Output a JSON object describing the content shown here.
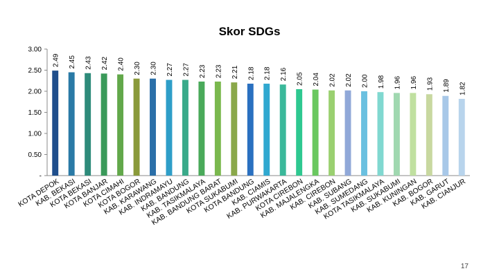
{
  "slide": {
    "page_number": "17"
  },
  "chart_data": {
    "type": "bar",
    "title": "Skor SDGs",
    "xlabel": "",
    "ylabel": "",
    "ylim": [
      0,
      3.0
    ],
    "yticks": [
      "-",
      "0.50",
      "1.00",
      "1.50",
      "2.00",
      "2.50",
      "3.00"
    ],
    "grid": false,
    "legend": "none",
    "categories": [
      "KOTA DEPOK",
      "KAB. BEKASI",
      "KOTA BEKASI",
      "KOTA BANJAR",
      "KOTA CIMAHI",
      "KOTA BOGOR",
      "KAB. KARAWANG",
      "KAB. INDRAMAYU",
      "KAB. BANDUNG",
      "KAB. TASIKMALAYA",
      "KAB. BANDUNG BARAT",
      "KOTA SUKABUMI",
      "KOTA BANDUNG",
      "KAB. CIAMIS",
      "KAB. PURWAKARTA",
      "KOTA CIREBON",
      "KAB. MAJALENGKA",
      "KAB. CIREBON",
      "KAB. SUBANG",
      "KAB. SUMEDANG",
      "KOTA TASIKMALAYA",
      "KAB. SUKABUMI",
      "KAB. KUNINGAN",
      "KAB. BOGOR",
      "KAB. GARUT",
      "KAB. CIANJUR"
    ],
    "values": [
      2.49,
      2.45,
      2.43,
      2.42,
      2.4,
      2.3,
      2.3,
      2.27,
      2.27,
      2.23,
      2.23,
      2.21,
      2.18,
      2.18,
      2.16,
      2.05,
      2.04,
      2.02,
      2.02,
      2.0,
      1.98,
      1.96,
      1.96,
      1.93,
      1.89,
      1.82
    ],
    "value_labels": [
      "2.49",
      "2.45",
      "2.43",
      "2.42",
      "2.40",
      "2.30",
      "2.30",
      "2.27",
      "2.27",
      "2.23",
      "2.23",
      "2.21",
      "2.18",
      "2.18",
      "2.16",
      "2.05",
      "2.04",
      "2.02",
      "2.02",
      "2.00",
      "1.98",
      "1.96",
      "1.96",
      "1.93",
      "1.89",
      "1.82"
    ],
    "colors": [
      "#1f4e8c",
      "#2a7aa6",
      "#2e8b7a",
      "#3a9a5a",
      "#62a84a",
      "#8a9a3a",
      "#2a6fa8",
      "#2e9ec8",
      "#3aaa8a",
      "#4aaa5a",
      "#7ab84e",
      "#8aa84a",
      "#2a70c0",
      "#30a8d0",
      "#3ab89a",
      "#2ec890",
      "#6ac860",
      "#9ad070",
      "#90a8d8",
      "#6ac0e0",
      "#80d8d0",
      "#a0d8b0",
      "#c0e0a0",
      "#c8d8a0",
      "#a8c8e8",
      "#b8d4ec"
    ]
  }
}
